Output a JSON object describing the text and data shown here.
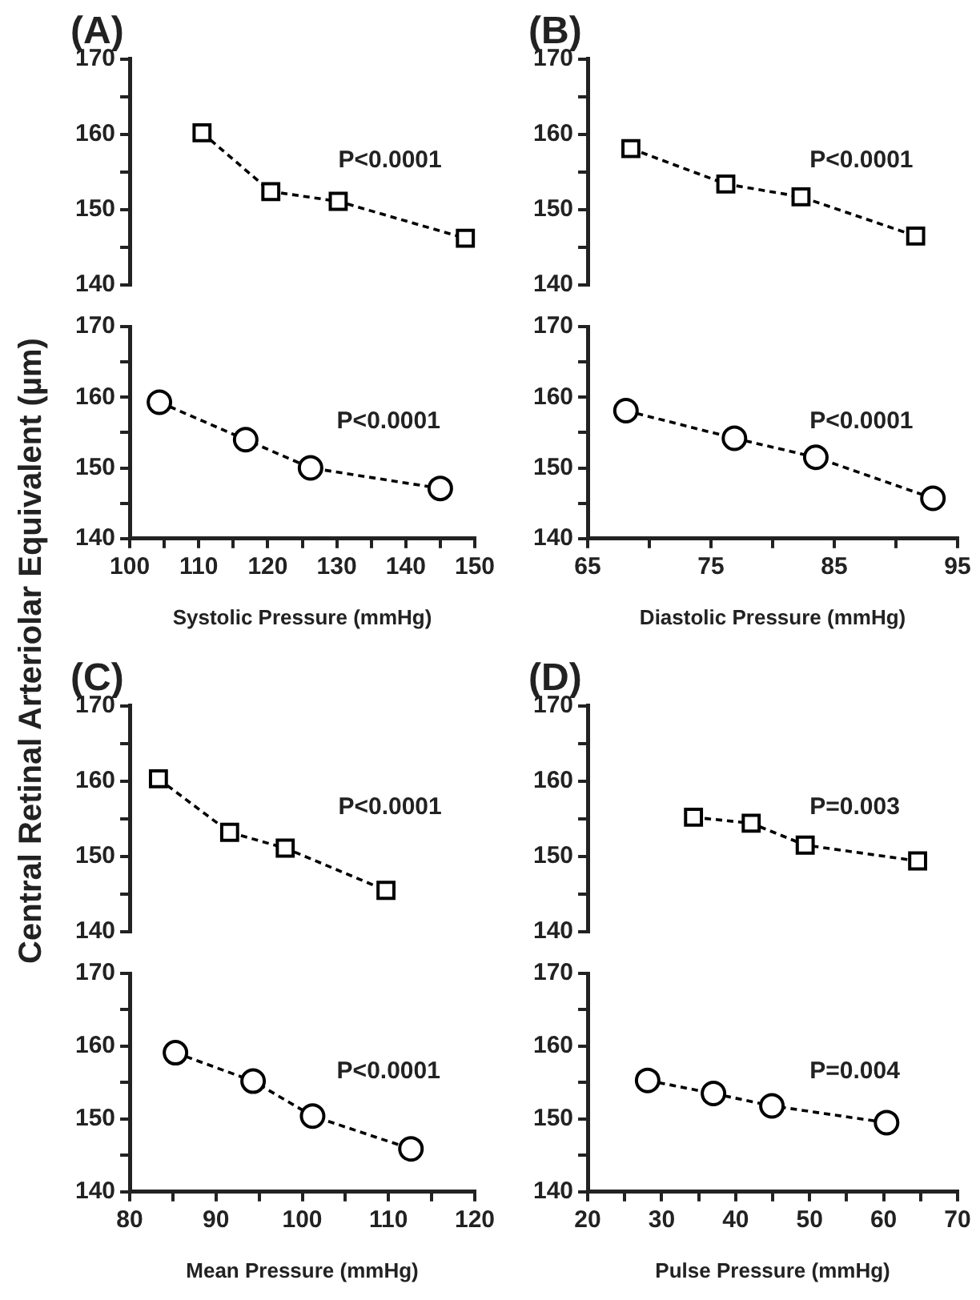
{
  "chart_data": [
    {
      "type": "line",
      "title": "(A)",
      "ylabel": "Central Retinal Arteriolar Equivalent (µm)",
      "x": [
        110.4,
        120.3,
        130,
        148.3
      ],
      "series": [
        {
          "color": "#000000",
          "values": [
            160.2,
            152.4,
            151.1,
            146.2
          ]
        }
      ],
      "marker": "square",
      "line_style": "dashed",
      "annotations": [
        "P<0.0001"
      ],
      "xlim": [
        100,
        150
      ],
      "ylim": [
        140,
        170
      ],
      "yticks": [
        140,
        {
          "value": 145,
          "label": null
        },
        150,
        {
          "value": 155,
          "label": null
        },
        160,
        {
          "value": 165,
          "label": null
        },
        170
      ],
      "tick_labels": "y"
    },
    {
      "type": "line",
      "xlabel": "Systolic Pressure (mmHg)",
      "x": [
        104.3,
        116.8,
        126.2,
        145
      ],
      "series": [
        {
          "color": "#000000",
          "values": [
            159.3,
            154,
            150,
            147.1
          ]
        }
      ],
      "marker": "circle",
      "line_style": "dashed",
      "annotations": [
        "P<0.0001"
      ],
      "xlim": [
        100,
        150
      ],
      "xticks": [
        100,
        {
          "value": 105,
          "label": null
        },
        110,
        {
          "value": 115,
          "label": null
        },
        120,
        {
          "value": 125,
          "label": null
        },
        130,
        {
          "value": 135,
          "label": null
        },
        140,
        {
          "value": 145,
          "label": null
        },
        150
      ],
      "ylim": [
        140,
        170
      ],
      "yticks": [
        140,
        {
          "value": 145,
          "label": null
        },
        150,
        {
          "value": 155,
          "label": null
        },
        160,
        {
          "value": 165,
          "label": null
        },
        170
      ]
    },
    {
      "type": "line",
      "title": "(B)",
      "x": [
        68.5,
        76.2,
        82.3,
        91.6
      ],
      "series": [
        {
          "color": "#000000",
          "values": [
            158.1,
            153.4,
            151.7,
            146.5
          ]
        }
      ],
      "marker": "square",
      "line_style": "dashed",
      "annotations": [
        "P<0.0001"
      ],
      "xlim": [
        65,
        95
      ],
      "ylim": [
        140,
        170
      ],
      "yticks": [
        140,
        {
          "value": 145,
          "label": null
        },
        150,
        {
          "value": 155,
          "label": null
        },
        160,
        {
          "value": 165,
          "label": null
        },
        170
      ],
      "tick_labels": "y"
    },
    {
      "type": "line",
      "xlabel": "Diastolic Pressure (mmHg)",
      "x": [
        68.1,
        76.9,
        83.5,
        93
      ],
      "series": [
        {
          "color": "#000000",
          "values": [
            158.1,
            154.2,
            151.5,
            145.7
          ]
        }
      ],
      "marker": "circle",
      "line_style": "dashed",
      "annotations": [
        "P<0.0001"
      ],
      "xlim": [
        65,
        95
      ],
      "xticks": [
        65,
        {
          "value": 70,
          "label": null
        },
        75,
        {
          "value": 80,
          "label": null
        },
        85,
        {
          "value": 90,
          "label": null
        },
        95
      ],
      "ylim": [
        140,
        170
      ],
      "yticks": [
        140,
        {
          "value": 145,
          "label": null
        },
        150,
        {
          "value": 155,
          "label": null
        },
        160,
        {
          "value": 165,
          "label": null
        },
        170
      ]
    },
    {
      "type": "line",
      "title": "(C)",
      "x": [
        83.3,
        91.5,
        97.9,
        109.5
      ],
      "series": [
        {
          "color": "#000000",
          "values": [
            160.3,
            153.2,
            151.1,
            145.5
          ]
        }
      ],
      "marker": "square",
      "line_style": "dashed",
      "annotations": [
        "P<0.0001"
      ],
      "xlim": [
        80,
        120
      ],
      "ylim": [
        140,
        170
      ],
      "yticks": [
        140,
        {
          "value": 145,
          "label": null
        },
        150,
        {
          "value": 155,
          "label": null
        },
        160,
        {
          "value": 165,
          "label": null
        },
        170
      ],
      "tick_labels": "y"
    },
    {
      "type": "line",
      "xlabel": "Mean Pressure (mmHg)",
      "x": [
        85.3,
        94.3,
        101.2,
        112.6
      ],
      "series": [
        {
          "color": "#000000",
          "values": [
            159.1,
            155.2,
            150.4,
            145.9
          ]
        }
      ],
      "marker": "circle",
      "line_style": "dashed",
      "annotations": [
        "P<0.0001"
      ],
      "xlim": [
        80,
        120
      ],
      "xticks": [
        80,
        {
          "value": 85,
          "label": null
        },
        90,
        {
          "value": 95,
          "label": null
        },
        100,
        {
          "value": 105,
          "label": null
        },
        110,
        {
          "value": 115,
          "label": null
        },
        120
      ],
      "ylim": [
        140,
        170
      ],
      "yticks": [
        140,
        {
          "value": 145,
          "label": null
        },
        150,
        {
          "value": 155,
          "label": null
        },
        160,
        {
          "value": 165,
          "label": null
        },
        170
      ]
    },
    {
      "type": "line",
      "title": "(D)",
      "x": [
        34.3,
        42.1,
        49.4,
        64.6
      ],
      "series": [
        {
          "color": "#000000",
          "values": [
            155.2,
            154.4,
            151.5,
            149.4
          ]
        }
      ],
      "marker": "square",
      "line_style": "dashed",
      "annotations": [
        "P=0.003"
      ],
      "xlim": [
        20,
        70
      ],
      "ylim": [
        140,
        170
      ],
      "yticks": [
        140,
        {
          "value": 145,
          "label": null
        },
        150,
        {
          "value": 155,
          "label": null
        },
        160,
        {
          "value": 165,
          "label": null
        },
        170
      ],
      "tick_labels": "y"
    },
    {
      "type": "line",
      "xlabel": "Pulse Pressure (mmHg)",
      "x": [
        28.1,
        37,
        44.9,
        60.4
      ],
      "series": [
        {
          "color": "#000000",
          "values": [
            155.3,
            153.5,
            151.8,
            149.5
          ]
        }
      ],
      "marker": "circle",
      "line_style": "dashed",
      "annotations": [
        "P=0.004"
      ],
      "xlim": [
        20,
        70
      ],
      "xticks": [
        20,
        {
          "value": 25,
          "label": null
        },
        30,
        {
          "value": 35,
          "label": null
        },
        40,
        {
          "value": 45,
          "label": null
        },
        50,
        {
          "value": 55,
          "label": null
        },
        60,
        {
          "value": 65,
          "label": null
        },
        70
      ],
      "ylim": [
        140,
        170
      ],
      "yticks": [
        140,
        {
          "value": 145,
          "label": null
        },
        150,
        {
          "value": 155,
          "label": null
        },
        160,
        {
          "value": 165,
          "label": null
        },
        170
      ]
    }
  ]
}
